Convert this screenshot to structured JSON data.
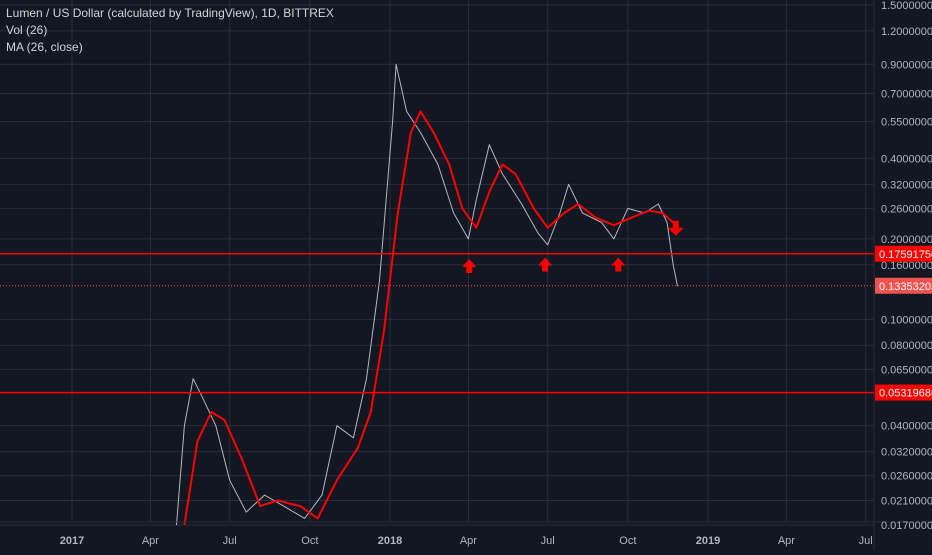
{
  "legend": {
    "title": "Lumen / US Dollar (calculated by TradingView), 1D, BITTREX",
    "vol": "Vol (26)",
    "ma": "MA (26, close)"
  },
  "colors": {
    "background": "#131722",
    "grid": "#2a2e39",
    "axis_text": "#b2b5be",
    "candle_up": "#26a69a",
    "candle_down": "#d1d4dc",
    "ma_line": "#ff0000",
    "hline": "#ff0000",
    "arrow": "#ff0000",
    "last_price_label": "#ef5350"
  },
  "chart_data": {
    "type": "line",
    "xlabel": "",
    "ylabel": "",
    "log_scale": true,
    "ylim": [
      0.016,
      1.55
    ],
    "x_ticks": [
      "2017",
      "Apr",
      "Jul",
      "Oct",
      "2018",
      "Apr",
      "Jul",
      "Oct",
      "2019",
      "Apr",
      "Jul"
    ],
    "x_tick_dates": [
      "2017-01-01",
      "2017-04-01",
      "2017-07-01",
      "2017-10-01",
      "2018-01-01",
      "2018-04-01",
      "2018-07-01",
      "2018-10-01",
      "2019-01-01",
      "2019-04-01",
      "2019-07-01"
    ],
    "y_ticks": [
      "1.50000000",
      "1.20000000",
      "0.90000000",
      "0.70000000",
      "0.55000000",
      "0.40000000",
      "0.32000000",
      "0.26000000",
      "0.20000000",
      "0.16000000",
      "0.10000000",
      "0.08000000",
      "0.06500000",
      "0.04000000",
      "0.03200000",
      "0.02600000",
      "0.02100000",
      "0.01700000"
    ],
    "series": [
      {
        "name": "Lumen / US Dollar",
        "points": [
          [
            "2017-05-01",
            0.017
          ],
          [
            "2017-05-10",
            0.04
          ],
          [
            "2017-05-20",
            0.06
          ],
          [
            "2017-06-01",
            0.05
          ],
          [
            "2017-06-15",
            0.04
          ],
          [
            "2017-07-01",
            0.025
          ],
          [
            "2017-07-20",
            0.019
          ],
          [
            "2017-08-10",
            0.022
          ],
          [
            "2017-09-01",
            0.02
          ],
          [
            "2017-09-25",
            0.018
          ],
          [
            "2017-10-15",
            0.022
          ],
          [
            "2017-11-01",
            0.04
          ],
          [
            "2017-11-20",
            0.036
          ],
          [
            "2017-12-05",
            0.06
          ],
          [
            "2017-12-20",
            0.14
          ],
          [
            "2018-01-04",
            0.55
          ],
          [
            "2018-01-08",
            0.9
          ],
          [
            "2018-01-20",
            0.6
          ],
          [
            "2018-02-05",
            0.5
          ],
          [
            "2018-02-25",
            0.38
          ],
          [
            "2018-03-15",
            0.25
          ],
          [
            "2018-04-01",
            0.2
          ],
          [
            "2018-04-10",
            0.28
          ],
          [
            "2018-04-25",
            0.45
          ],
          [
            "2018-05-10",
            0.35
          ],
          [
            "2018-06-01",
            0.27
          ],
          [
            "2018-06-20",
            0.21
          ],
          [
            "2018-07-01",
            0.19
          ],
          [
            "2018-07-15",
            0.25
          ],
          [
            "2018-07-25",
            0.32
          ],
          [
            "2018-08-10",
            0.25
          ],
          [
            "2018-09-01",
            0.23
          ],
          [
            "2018-09-15",
            0.2
          ],
          [
            "2018-10-01",
            0.26
          ],
          [
            "2018-10-20",
            0.25
          ],
          [
            "2018-11-05",
            0.27
          ],
          [
            "2018-11-15",
            0.23
          ],
          [
            "2018-11-22",
            0.16
          ],
          [
            "2018-11-27",
            0.133
          ]
        ]
      },
      {
        "name": "MA (26, close)",
        "points": [
          [
            "2017-05-10",
            0.017
          ],
          [
            "2017-05-25",
            0.035
          ],
          [
            "2017-06-10",
            0.045
          ],
          [
            "2017-06-25",
            0.042
          ],
          [
            "2017-07-15",
            0.03
          ],
          [
            "2017-08-05",
            0.02
          ],
          [
            "2017-08-25",
            0.021
          ],
          [
            "2017-09-20",
            0.02
          ],
          [
            "2017-10-10",
            0.018
          ],
          [
            "2017-11-01",
            0.025
          ],
          [
            "2017-11-25",
            0.033
          ],
          [
            "2017-12-10",
            0.045
          ],
          [
            "2017-12-25",
            0.09
          ],
          [
            "2018-01-10",
            0.25
          ],
          [
            "2018-01-25",
            0.5
          ],
          [
            "2018-02-05",
            0.6
          ],
          [
            "2018-02-20",
            0.5
          ],
          [
            "2018-03-10",
            0.38
          ],
          [
            "2018-03-25",
            0.26
          ],
          [
            "2018-04-10",
            0.22
          ],
          [
            "2018-04-25",
            0.3
          ],
          [
            "2018-05-10",
            0.38
          ],
          [
            "2018-05-25",
            0.35
          ],
          [
            "2018-06-15",
            0.26
          ],
          [
            "2018-07-01",
            0.22
          ],
          [
            "2018-07-20",
            0.25
          ],
          [
            "2018-08-05",
            0.27
          ],
          [
            "2018-08-25",
            0.24
          ],
          [
            "2018-09-15",
            0.225
          ],
          [
            "2018-10-05",
            0.24
          ],
          [
            "2018-10-25",
            0.255
          ],
          [
            "2018-11-10",
            0.25
          ],
          [
            "2018-11-22",
            0.23
          ]
        ]
      }
    ],
    "horizontal_lines": [
      {
        "label": "0.17591750",
        "value": 0.1759175
      },
      {
        "label": "0.05319686",
        "value": 0.05319686
      }
    ],
    "last_price": {
      "label": "0.13353202",
      "value": 0.13353202
    },
    "annotations": [
      {
        "type": "arrow-up",
        "date": "2018-04-02",
        "value": 0.157
      },
      {
        "type": "arrow-up",
        "date": "2018-06-28",
        "value": 0.159
      },
      {
        "type": "arrow-up",
        "date": "2018-09-20",
        "value": 0.159
      },
      {
        "type": "arrow-down",
        "date": "2018-11-25",
        "value": 0.22
      }
    ]
  }
}
